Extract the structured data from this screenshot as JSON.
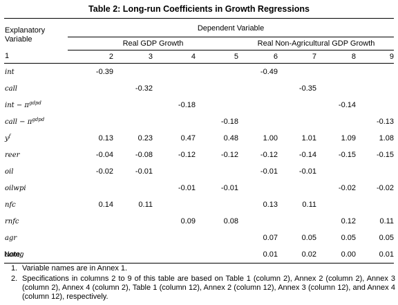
{
  "table": {
    "title": "Table 2: Long-run Coefficients in Growth Regressions",
    "explanatory_header": "Explanatory Variable",
    "dependent_header": "Dependent Variable",
    "groups": [
      "Real GDP Growth",
      "Real Non-Agricultural GDP Growth"
    ],
    "column_numbers": [
      "1",
      "2",
      "3",
      "4",
      "5",
      "6",
      "7",
      "8",
      "9"
    ],
    "rows": [
      {
        "var": "int",
        "sup": "",
        "values": [
          "-0.39",
          "",
          "",
          "",
          "-0.49",
          "",
          "",
          ""
        ]
      },
      {
        "var": "call",
        "sup": "",
        "values": [
          "",
          "-0.32",
          "",
          "",
          "",
          "-0.35",
          "",
          ""
        ]
      },
      {
        "var": "int − π",
        "sup": "gdpd",
        "values": [
          "",
          "",
          "-0.18",
          "",
          "",
          "",
          "-0.14",
          ""
        ]
      },
      {
        "var": "call − π",
        "sup": "gdpd",
        "values": [
          "",
          "",
          "",
          "-0.18",
          "",
          "",
          "",
          "-0.13"
        ]
      },
      {
        "var": "y",
        "sup": "f",
        "values": [
          "0.13",
          "0.23",
          "0.47",
          "0.48",
          "1.00",
          "1.01",
          "1.09",
          "1.08"
        ]
      },
      {
        "var": "reer",
        "sup": "",
        "values": [
          "-0.04",
          "-0.08",
          "-0.12",
          "-0.12",
          "-0.12",
          "-0.14",
          "-0.15",
          "-0.15"
        ]
      },
      {
        "var": "oil",
        "sup": "",
        "values": [
          "-0.02",
          "-0.01",
          "",
          "",
          "-0.01",
          "-0.01",
          "",
          ""
        ]
      },
      {
        "var": "oilwpi",
        "sup": "",
        "values": [
          "",
          "",
          "-0.01",
          "-0.01",
          "",
          "",
          "-0.02",
          "-0.02"
        ]
      },
      {
        "var": "nfc",
        "sup": "",
        "values": [
          "0.14",
          "0.11",
          "",
          "",
          "0.13",
          "0.11",
          "",
          ""
        ]
      },
      {
        "var": "rnfc",
        "sup": "",
        "values": [
          "",
          "",
          "0.09",
          "0.08",
          "",
          "",
          "0.12",
          "0.11"
        ]
      },
      {
        "var": "agr",
        "sup": "",
        "values": [
          "",
          "",
          "",
          "",
          "0.07",
          "0.05",
          "0.05",
          "0.05"
        ]
      },
      {
        "var": "comg",
        "sup": "",
        "values": [
          "",
          "",
          "",
          "",
          "0.01",
          "0.02",
          "0.00",
          "0.01"
        ]
      }
    ]
  },
  "notes": {
    "heading": "Note:",
    "items": [
      {
        "num": "1.",
        "text": "Variable names are in Annex 1."
      },
      {
        "num": "2.",
        "text": "Specifications in columns 2 to 9 of this table are based on Table 1 (column 2), Annex 2 (column 2), Annex 3 (column 2), Annex 4 (column 2), Table 1 (column 12), Annex 2 (column 12), Annex 3 (column 12), and Annex 4 (column 12), respectively."
      }
    ]
  }
}
